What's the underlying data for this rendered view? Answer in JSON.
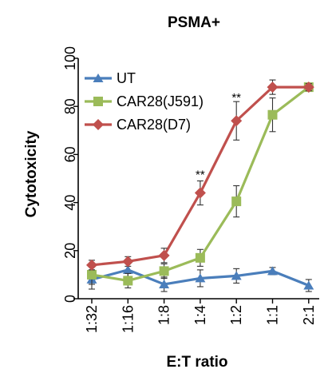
{
  "chart_data": {
    "type": "line",
    "title": "PSMA+",
    "xlabel": "E:T ratio",
    "ylabel": "Cytotoxicity",
    "categories": [
      "1:32",
      "1:16",
      "1:8",
      "1:4",
      "1:2",
      "1:1",
      "2:1"
    ],
    "ylim": [
      0,
      100
    ],
    "yticks": [
      0,
      20,
      40,
      60,
      80,
      100
    ],
    "grid": false,
    "legend_position": "top-left",
    "series": [
      {
        "name": "UT",
        "color": "#4a7ebb",
        "marker": "triangle",
        "values": [
          8,
          12,
          6,
          8.5,
          9.5,
          11.5,
          5.5
        ],
        "errors": [
          4,
          3,
          3,
          3.5,
          3,
          1.5,
          2.5
        ]
      },
      {
        "name": "CAR28(J591)",
        "color": "#9bbb59",
        "marker": "square",
        "values": [
          10,
          7.5,
          11.5,
          17,
          40.5,
          76.5,
          88
        ],
        "errors": [
          4,
          3,
          3,
          3.5,
          6.5,
          7,
          1.5
        ]
      },
      {
        "name": "CAR28(D7)",
        "color": "#c0504d",
        "marker": "diamond",
        "values": [
          14,
          15.5,
          18,
          44,
          74,
          88,
          88
        ],
        "errors": [
          2,
          2,
          3,
          5,
          8,
          3,
          1.5
        ]
      }
    ],
    "annotations": [
      {
        "category": "1:4",
        "text": "**",
        "y": 50
      },
      {
        "category": "1:2",
        "text": "**",
        "y": 82
      }
    ]
  }
}
